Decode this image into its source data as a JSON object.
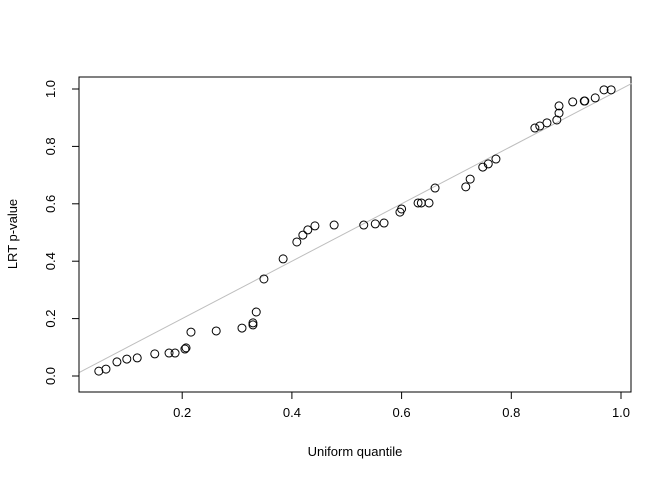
{
  "chart_data": {
    "type": "scatter",
    "title": "",
    "xlabel": "Uniform quantile",
    "ylabel": "LRT p-value",
    "xlim": [
      0.0,
      1.0
    ],
    "ylim": [
      0.0,
      1.0
    ],
    "xticks": [
      "0.2",
      "0.4",
      "0.6",
      "0.8",
      "1.0"
    ],
    "yticks": [
      "0.0",
      "0.2",
      "0.4",
      "0.6",
      "0.8",
      "1.0"
    ],
    "grid": false,
    "reference_line": {
      "intercept": 0,
      "slope": 1,
      "color": "#bebebe"
    },
    "point_style": "open-circle",
    "points": [
      [
        0.048,
        0.017
      ],
      [
        0.061,
        0.024
      ],
      [
        0.081,
        0.049
      ],
      [
        0.099,
        0.059
      ],
      [
        0.118,
        0.063
      ],
      [
        0.15,
        0.077
      ],
      [
        0.176,
        0.08
      ],
      [
        0.187,
        0.08
      ],
      [
        0.205,
        0.094
      ],
      [
        0.207,
        0.098
      ],
      [
        0.216,
        0.153
      ],
      [
        0.262,
        0.157
      ],
      [
        0.309,
        0.167
      ],
      [
        0.329,
        0.178
      ],
      [
        0.329,
        0.185
      ],
      [
        0.335,
        0.223
      ],
      [
        0.349,
        0.338
      ],
      [
        0.384,
        0.408
      ],
      [
        0.409,
        0.467
      ],
      [
        0.42,
        0.491
      ],
      [
        0.429,
        0.509
      ],
      [
        0.442,
        0.523
      ],
      [
        0.477,
        0.526
      ],
      [
        0.531,
        0.526
      ],
      [
        0.552,
        0.53
      ],
      [
        0.568,
        0.533
      ],
      [
        0.597,
        0.571
      ],
      [
        0.6,
        0.582
      ],
      [
        0.63,
        0.603
      ],
      [
        0.636,
        0.603
      ],
      [
        0.65,
        0.603
      ],
      [
        0.661,
        0.655
      ],
      [
        0.717,
        0.659
      ],
      [
        0.725,
        0.686
      ],
      [
        0.748,
        0.728
      ],
      [
        0.758,
        0.739
      ],
      [
        0.772,
        0.756
      ],
      [
        0.843,
        0.864
      ],
      [
        0.852,
        0.871
      ],
      [
        0.865,
        0.882
      ],
      [
        0.883,
        0.892
      ],
      [
        0.887,
        0.916
      ],
      [
        0.887,
        0.941
      ],
      [
        0.912,
        0.955
      ],
      [
        0.933,
        0.958
      ],
      [
        0.934,
        0.958
      ],
      [
        0.953,
        0.969
      ],
      [
        0.969,
        0.997
      ],
      [
        0.982,
        0.997
      ]
    ]
  }
}
